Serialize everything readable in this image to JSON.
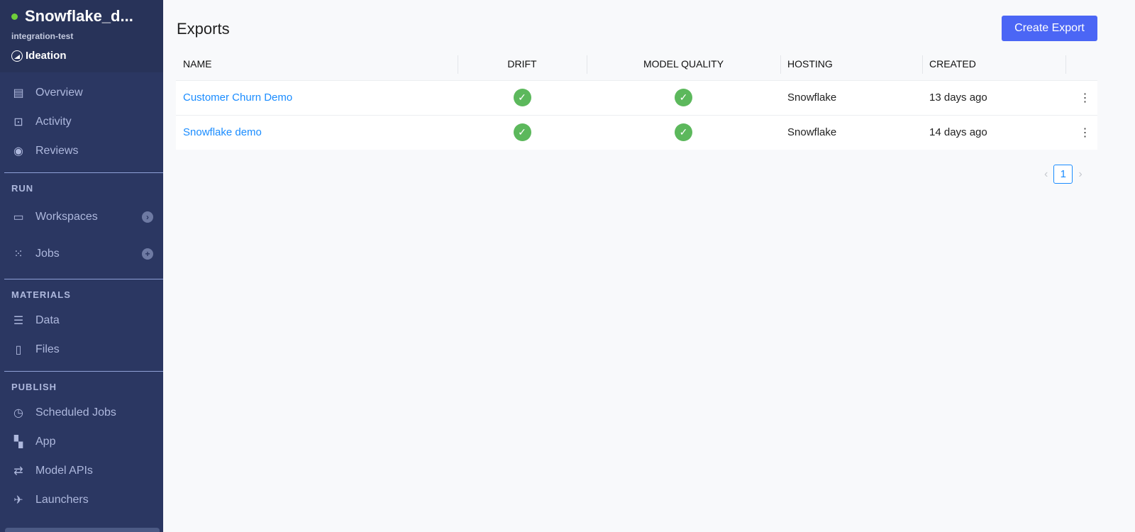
{
  "sidebar": {
    "project": "Snowflake_d...",
    "owner": "integration-test",
    "stage": "Ideation",
    "top_items": [
      {
        "label": "Overview",
        "icon": "overview-icon"
      },
      {
        "label": "Activity",
        "icon": "activity-icon"
      },
      {
        "label": "Reviews",
        "icon": "eye-icon"
      }
    ],
    "run": {
      "title": "RUN",
      "items": [
        {
          "label": "Workspaces",
          "icon": "monitor-icon"
        },
        {
          "label": "Jobs",
          "icon": "spinner-icon"
        }
      ]
    },
    "materials": {
      "title": "MATERIALS",
      "items": [
        {
          "label": "Data",
          "icon": "database-icon"
        },
        {
          "label": "Files",
          "icon": "file-icon"
        }
      ]
    },
    "publish": {
      "title": "PUBLISH",
      "items": [
        {
          "label": "Scheduled Jobs",
          "icon": "clock-icon"
        },
        {
          "label": "App",
          "icon": "app-icon"
        },
        {
          "label": "Model APIs",
          "icon": "swap-icon"
        },
        {
          "label": "Launchers",
          "icon": "rocket-icon"
        }
      ]
    }
  },
  "page": {
    "title": "Exports",
    "create_label": "Create Export"
  },
  "table": {
    "headers": [
      "NAME",
      "DRIFT",
      "MODEL QUALITY",
      "HOSTING",
      "CREATED"
    ],
    "rows": [
      {
        "name": "Customer Churn Demo",
        "drift": "ok",
        "quality": "ok",
        "hosting": "Snowflake",
        "created": "13 days ago"
      },
      {
        "name": "Snowflake demo",
        "drift": "ok",
        "quality": "ok",
        "hosting": "Snowflake",
        "created": "14 days ago"
      }
    ]
  },
  "pagination": {
    "current": "1"
  },
  "colors": {
    "sidebar": "#2b3762",
    "accent": "#4b66f5",
    "link": "#1a8cff",
    "success": "#5cb85c"
  }
}
